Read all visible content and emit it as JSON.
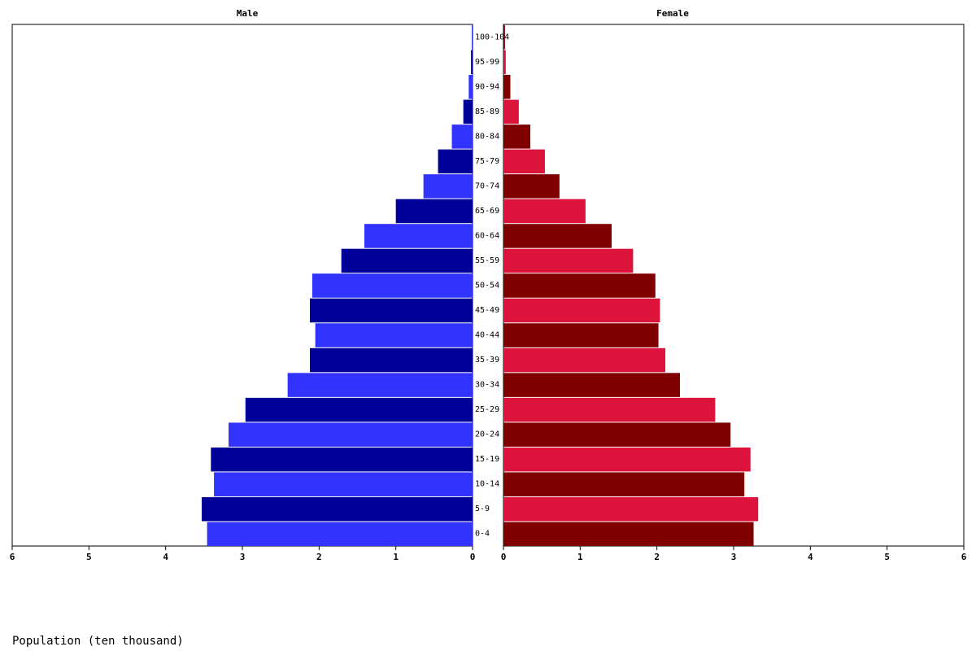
{
  "chart_data": {
    "type": "pyramid",
    "categories": [
      "0-4",
      "5-9",
      "10-14",
      "15-19",
      "20-24",
      "25-29",
      "30-34",
      "35-39",
      "40-44",
      "45-49",
      "50-54",
      "55-59",
      "60-64",
      "65-69",
      "70-74",
      "75-79",
      "80-84",
      "85-89",
      "90-94",
      "95-99",
      "100-104"
    ],
    "series": [
      {
        "name": "Male",
        "colors": [
          "#3333ff",
          "#000099"
        ],
        "values": [
          3.46,
          3.53,
          3.37,
          3.41,
          3.18,
          2.96,
          2.41,
          2.12,
          2.05,
          2.12,
          2.09,
          1.71,
          1.41,
          1.0,
          0.64,
          0.45,
          0.27,
          0.12,
          0.05,
          0.02,
          0.01
        ]
      },
      {
        "name": "Female",
        "colors": [
          "#800000",
          "#dc143c"
        ],
        "values": [
          3.26,
          3.32,
          3.14,
          3.22,
          2.96,
          2.76,
          2.3,
          2.11,
          2.02,
          2.04,
          1.98,
          1.69,
          1.41,
          1.07,
          0.73,
          0.54,
          0.35,
          0.2,
          0.09,
          0.03,
          0.02
        ]
      }
    ],
    "xlim": [
      0,
      6
    ],
    "xticks": [
      0,
      1,
      2,
      3,
      4,
      5,
      6
    ],
    "xlabel": "Population (ten thousand)"
  }
}
